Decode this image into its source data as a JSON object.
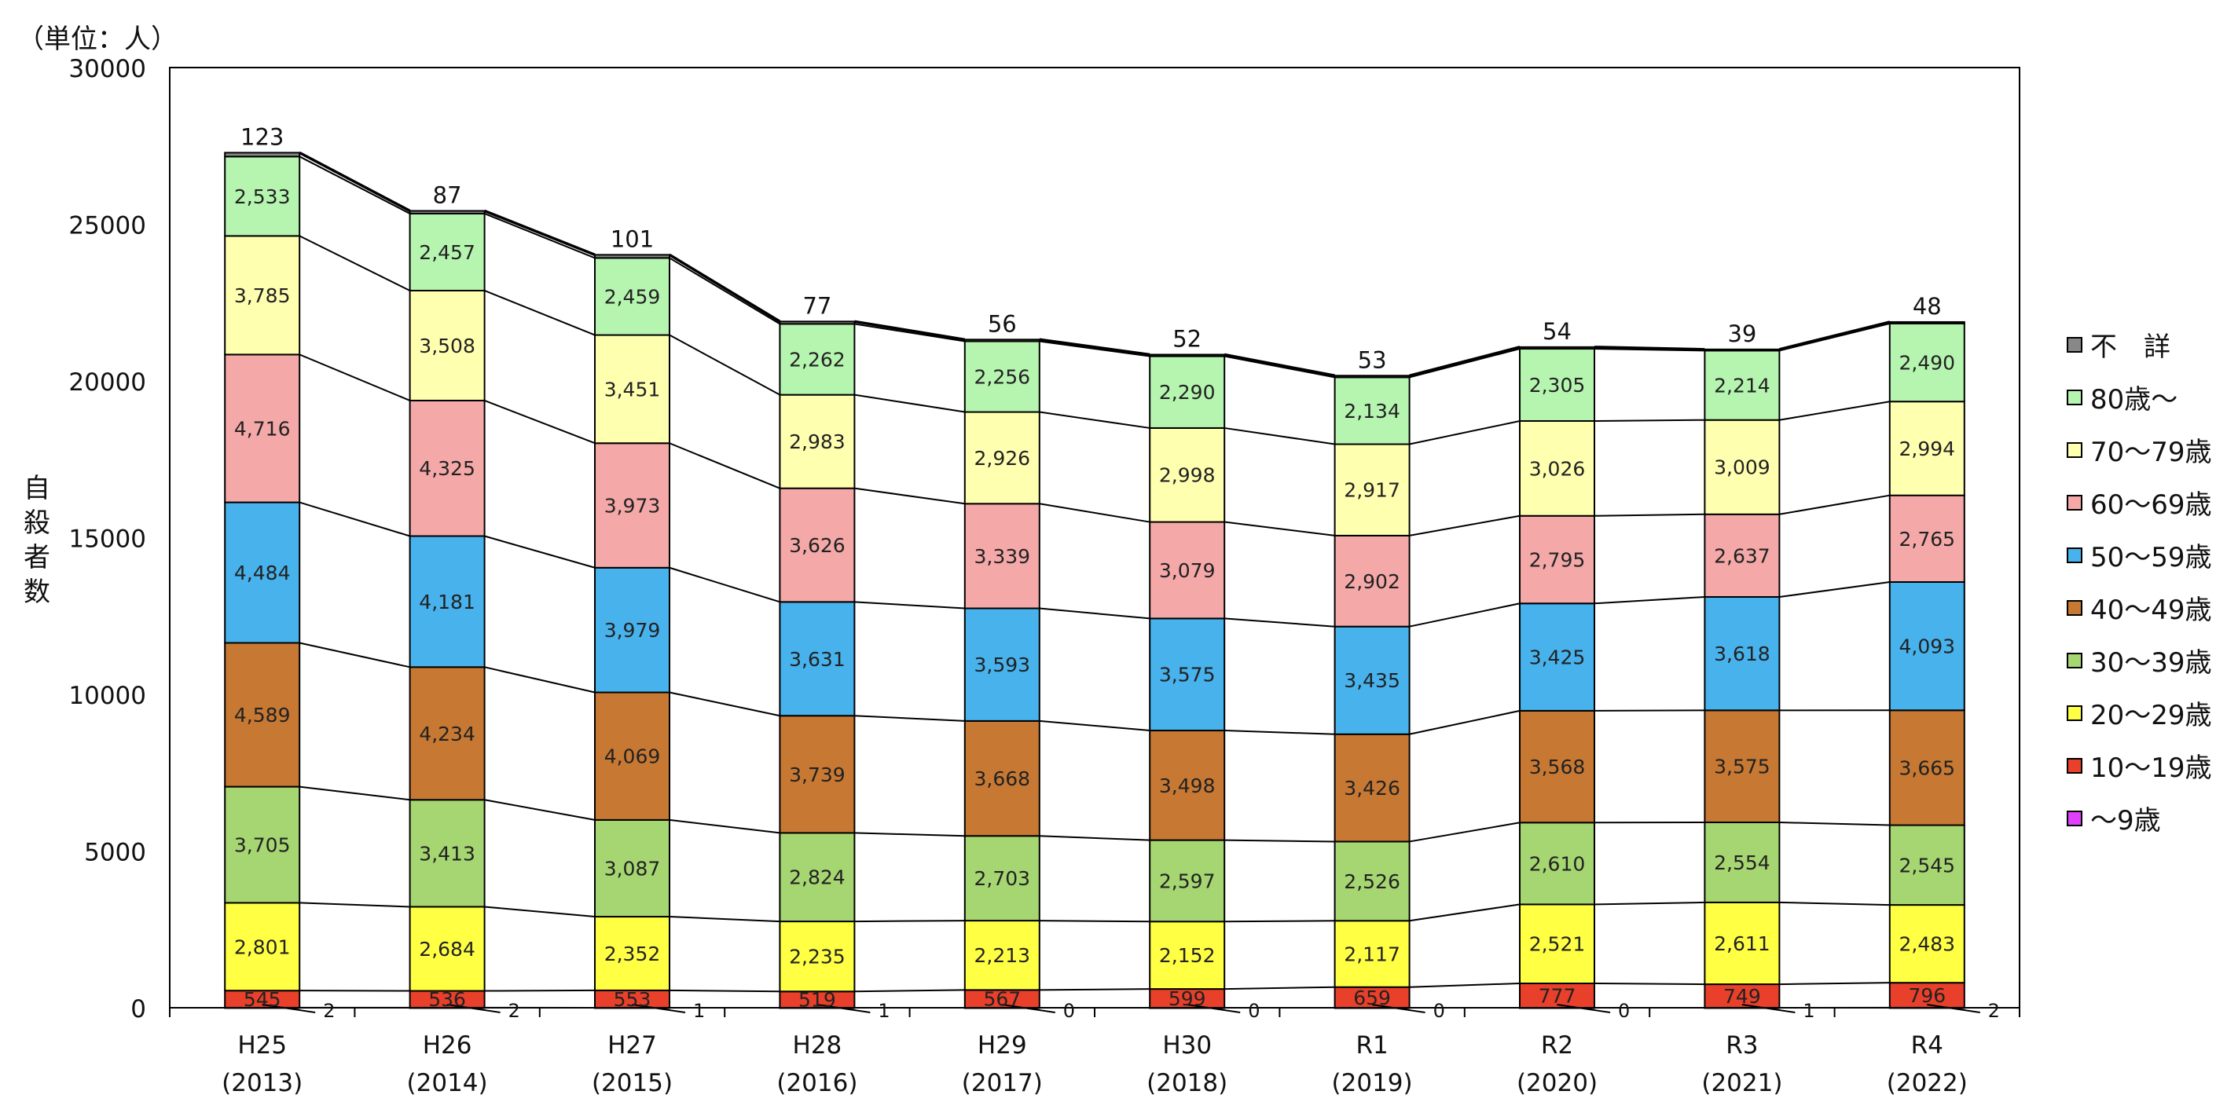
{
  "chart_data": {
    "type": "bar",
    "stacked": true,
    "unit_label": "（単位：人）",
    "ylabel": "自殺者数",
    "xlabel": "",
    "ylim": [
      0,
      30000
    ],
    "y_ticks": [
      0,
      5000,
      10000,
      15000,
      20000,
      25000,
      30000
    ],
    "categories": [
      {
        "era": "H25",
        "year": "(2013)"
      },
      {
        "era": "H26",
        "year": "(2014)"
      },
      {
        "era": "H27",
        "year": "(2015)"
      },
      {
        "era": "H28",
        "year": "(2016)"
      },
      {
        "era": "H29",
        "year": "(2017)"
      },
      {
        "era": "H30",
        "year": "(2018)"
      },
      {
        "era": "R1",
        "year": "(2019)"
      },
      {
        "era": "R2",
        "year": "(2020)"
      },
      {
        "era": "R3",
        "year": "(2021)"
      },
      {
        "era": "R4",
        "year": "(2022)"
      }
    ],
    "series": [
      {
        "name": "〜9歳",
        "color": "#e040fb",
        "values": [
          2,
          2,
          1,
          1,
          0,
          0,
          0,
          0,
          1,
          2
        ]
      },
      {
        "name": "10〜19歳",
        "color": "#e8402a",
        "values": [
          545,
          536,
          553,
          519,
          567,
          599,
          659,
          777,
          749,
          796
        ]
      },
      {
        "name": "20〜29歳",
        "color": "#ffff44",
        "values": [
          2801,
          2684,
          2352,
          2235,
          2213,
          2152,
          2117,
          2521,
          2611,
          2483
        ]
      },
      {
        "name": "30〜39歳",
        "color": "#a6d672",
        "values": [
          3705,
          3413,
          3087,
          2824,
          2703,
          2597,
          2526,
          2610,
          2554,
          2545
        ]
      },
      {
        "name": "40〜49歳",
        "color": "#c77833",
        "values": [
          4589,
          4234,
          4069,
          3739,
          3668,
          3498,
          3426,
          3568,
          3575,
          3665
        ]
      },
      {
        "name": "50〜59歳",
        "color": "#47b2ec",
        "values": [
          4484,
          4181,
          3979,
          3631,
          3593,
          3575,
          3435,
          3425,
          3618,
          4093
        ]
      },
      {
        "name": "60〜69歳",
        "color": "#f4a8a8",
        "values": [
          4716,
          4325,
          3973,
          3626,
          3339,
          3079,
          2902,
          2795,
          2637,
          2765
        ]
      },
      {
        "name": "70〜79歳",
        "color": "#ffffb0",
        "values": [
          3785,
          3508,
          3451,
          2983,
          2926,
          2998,
          2917,
          3026,
          3009,
          2994
        ]
      },
      {
        "name": "80歳〜",
        "color": "#b6f5b0",
        "values": [
          2533,
          2457,
          2459,
          2262,
          2256,
          2290,
          2134,
          2305,
          2214,
          2490
        ]
      },
      {
        "name": "不　詳",
        "color": "#888888",
        "values": [
          123,
          87,
          101,
          77,
          56,
          52,
          53,
          54,
          39,
          48
        ]
      }
    ],
    "legend_order": [
      "不　詳",
      "80歳〜",
      "70〜79歳",
      "60〜69歳",
      "50〜59歳",
      "40〜49歳",
      "30〜39歳",
      "20〜29歳",
      "10〜19歳",
      "〜9歳"
    ],
    "legend_position": "right"
  }
}
